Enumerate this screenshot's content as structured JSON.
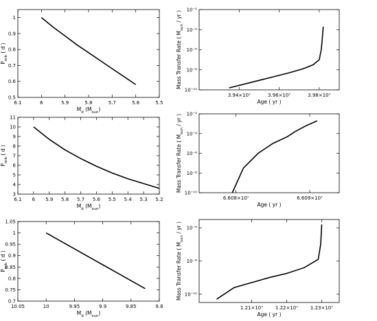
{
  "chart_data": [
    {
      "type": "line",
      "xlabel": "M_d (M_sun)",
      "ylabel": "P_orb ( d )",
      "xlim": [
        6.1,
        5.5
      ],
      "ylim": [
        0.5,
        1.05
      ],
      "x_ticks": [
        "6.1",
        "6",
        "5.9",
        "5.8",
        "5.7",
        "5.6",
        "5.5"
      ],
      "x_tick_values": [
        6.1,
        6.0,
        5.9,
        5.8,
        5.7,
        5.6,
        5.5
      ],
      "y_ticks": [
        "0.5",
        "0.6",
        "0.7",
        "0.8",
        "0.9",
        "1"
      ],
      "y_tick_values": [
        0.5,
        0.6,
        0.7,
        0.8,
        0.9,
        1.0
      ],
      "x": [
        6.0,
        5.95,
        5.9,
        5.85,
        5.8,
        5.75,
        5.7,
        5.65,
        5.6
      ],
      "y": [
        1.0,
        0.94,
        0.885,
        0.83,
        0.78,
        0.73,
        0.68,
        0.63,
        0.58
      ]
    },
    {
      "type": "line",
      "xlabel": "Age ( yr )",
      "ylabel": "Mass Transfer Rate ( M_sun / yr )",
      "y_scale": "log",
      "xlim": [
        39200000.0,
        39900000.0
      ],
      "ylim": [
        -10,
        -2
      ],
      "x_ticks": [
        "3.94×10⁷",
        "3.96×10⁷",
        "3.98×10⁷"
      ],
      "x_tick_values": [
        39400000.0,
        39600000.0,
        39800000.0
      ],
      "y_ticks": [
        "10⁻¹⁰",
        "10⁻⁸",
        "10⁻⁶",
        "10⁻⁴",
        "10⁻²"
      ],
      "y_tick_values": [
        -10,
        -8,
        -6,
        -4,
        -2
      ],
      "x": [
        39350000.0,
        39450000.0,
        39550000.0,
        39650000.0,
        39720000.0,
        39770000.0,
        39800000.0,
        39810000.0,
        39815000.0,
        39820000.0
      ],
      "y": [
        -9.8,
        -9.3,
        -8.8,
        -8.3,
        -7.9,
        -7.5,
        -7.0,
        -6.0,
        -5.0,
        -3.7
      ]
    },
    {
      "type": "line",
      "xlabel": "M_d (M_sun)",
      "ylabel": "P_orb ( d )",
      "xlim": [
        6.1,
        5.2
      ],
      "ylim": [
        3,
        11
      ],
      "x_ticks": [
        "6.1",
        "6",
        "5.9",
        "5.8",
        "5.7",
        "5.6",
        "5.5",
        "5.4",
        "5.3",
        "5.2"
      ],
      "x_tick_values": [
        6.1,
        6.0,
        5.9,
        5.8,
        5.7,
        5.6,
        5.5,
        5.4,
        5.3,
        5.2
      ],
      "y_ticks": [
        "3",
        "4",
        "5",
        "6",
        "7",
        "8",
        "9",
        "10",
        "11"
      ],
      "y_tick_values": [
        3,
        4,
        5,
        6,
        7,
        8,
        9,
        10,
        11
      ],
      "x": [
        6.0,
        5.9,
        5.8,
        5.7,
        5.6,
        5.5,
        5.4,
        5.3,
        5.2
      ],
      "y": [
        10.0,
        8.7,
        7.6,
        6.7,
        5.9,
        5.2,
        4.6,
        4.1,
        3.6
      ]
    },
    {
      "type": "line",
      "xlabel": "Age ( yr )",
      "ylabel": "Mass Transfer Rate ( M_sun / yr )",
      "y_scale": "log",
      "xlim": [
        66075000.0,
        66094000.0
      ],
      "ylim": [
        -10,
        -2
      ],
      "x_ticks": [
        "6.608×10⁷",
        "6.609×10⁷"
      ],
      "x_tick_values": [
        66080000.0,
        66090000.0
      ],
      "y_ticks": [
        "10⁻¹⁰",
        "10⁻⁸",
        "10⁻⁶",
        "10⁻⁴",
        "10⁻²"
      ],
      "y_tick_values": [
        -10,
        -8,
        -6,
        -4,
        -2
      ],
      "x": [
        66079500.0,
        66081000.0,
        66083000.0,
        66085000.0,
        66087000.0,
        66088000.0,
        66089500.0,
        66091000.0
      ],
      "y": [
        -10.0,
        -7.5,
        -6.0,
        -5.0,
        -4.3,
        -3.8,
        -3.2,
        -2.7
      ]
    },
    {
      "type": "line",
      "xlabel": "M_d (M_sun)",
      "ylabel": "P_orb ( d )",
      "xlim": [
        10.05,
        9.8
      ],
      "ylim": [
        0.7,
        1.05
      ],
      "x_ticks": [
        "10.05",
        "10",
        "9.95",
        "9.9",
        "9.85",
        "9.8"
      ],
      "x_tick_values": [
        10.05,
        10.0,
        9.95,
        9.9,
        9.85,
        9.8
      ],
      "y_ticks": [
        "0.7",
        "0.75",
        "0.8",
        "0.85",
        "0.9",
        "0.95",
        "1",
        "1.05"
      ],
      "y_tick_values": [
        0.7,
        0.75,
        0.8,
        0.85,
        0.9,
        0.95,
        1.0,
        1.05
      ],
      "x": [
        10.0,
        9.975,
        9.95,
        9.925,
        9.9,
        9.875,
        9.85,
        9.825
      ],
      "y": [
        1.0,
        0.965,
        0.93,
        0.895,
        0.86,
        0.825,
        0.79,
        0.755
      ]
    },
    {
      "type": "line",
      "xlabel": "Age ( yr )",
      "ylabel": "Mass Transfer Rate ( M_sun / yr )",
      "y_scale": "log",
      "xlim": [
        11950000.0,
        12350000.0
      ],
      "ylim": [
        -10.5,
        -5.5
      ],
      "x_ticks": [
        "1.21×10⁷",
        "1.22×10⁷",
        "1.23×10⁷"
      ],
      "x_tick_values": [
        12100000.0,
        12200000.0,
        12300000.0
      ],
      "y_ticks": [
        "10⁻¹⁰",
        "10⁻⁸",
        "10⁻⁶"
      ],
      "y_tick_values": [
        -10,
        -8,
        -6
      ],
      "x": [
        12000000.0,
        12050000.0,
        12100000.0,
        12150000.0,
        12200000.0,
        12250000.0,
        12290000.0,
        12297000.0,
        12300000.0
      ],
      "y": [
        -10.3,
        -9.6,
        -9.3,
        -9.0,
        -8.75,
        -8.4,
        -7.9,
        -7.0,
        -5.8
      ]
    }
  ]
}
